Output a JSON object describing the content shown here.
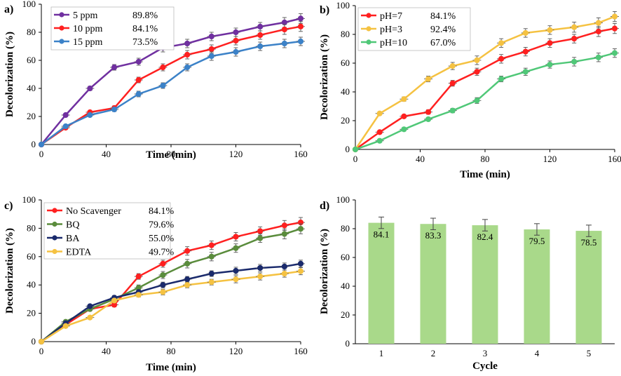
{
  "chart_data": [
    {
      "panel": "a)",
      "type": "line",
      "xlabel": "Time (min)",
      "ylabel": "Decolorization (%)",
      "xlim": [
        0,
        160
      ],
      "ylim": [
        0,
        100
      ],
      "xticks": [
        0,
        40,
        80,
        120,
        160
      ],
      "yticks": [
        0,
        20,
        40,
        60,
        80,
        100
      ],
      "x": [
        0,
        15,
        30,
        45,
        60,
        75,
        90,
        105,
        120,
        135,
        150,
        160
      ],
      "legend_position": "top-left",
      "series": [
        {
          "name": "5 ppm",
          "label": "89.8%",
          "color": "#7030a0",
          "values": [
            0,
            21,
            40,
            55,
            59,
            69,
            72,
            77,
            80,
            84,
            87,
            89.8
          ],
          "errors": [
            0,
            1,
            1.5,
            2,
            2.5,
            3,
            3,
            3,
            3,
            3,
            3.5,
            3.5
          ]
        },
        {
          "name": "10 ppm",
          "label": "84.1%",
          "color": "#ff2020",
          "values": [
            0,
            12,
            23,
            26,
            46,
            55,
            64,
            68,
            74,
            78,
            82,
            84.1
          ],
          "errors": [
            0,
            1,
            1,
            1.5,
            2,
            2.5,
            3,
            3,
            3,
            3,
            3.5,
            3.5
          ]
        },
        {
          "name": "15 ppm",
          "label": "73.5%",
          "color": "#3c82c8",
          "values": [
            0,
            13,
            21,
            25,
            36,
            42,
            55,
            63,
            66,
            70,
            72,
            73.5
          ],
          "errors": [
            0,
            1,
            1,
            1.5,
            2,
            2,
            2.5,
            3,
            3,
            3,
            3,
            3
          ]
        }
      ]
    },
    {
      "panel": "b)",
      "type": "line",
      "xlabel": "Time (min)",
      "ylabel": "Decolorization (%)",
      "xlim": [
        0,
        160
      ],
      "ylim": [
        0,
        100
      ],
      "xticks": [
        0,
        40,
        80,
        120,
        160
      ],
      "yticks": [
        0,
        20,
        40,
        60,
        80,
        100
      ],
      "x": [
        0,
        15,
        30,
        45,
        60,
        75,
        90,
        105,
        120,
        135,
        150,
        160
      ],
      "legend_position": "top-left",
      "series": [
        {
          "name": "pH=7",
          "label": "84.1%",
          "color": "#ff2020",
          "values": [
            0,
            12,
            23,
            26,
            46,
            54,
            63,
            68,
            74,
            77,
            82,
            84.1
          ],
          "errors": [
            0,
            1,
            1,
            1.5,
            2,
            2.5,
            3,
            3,
            3,
            3,
            3.5,
            3.5
          ]
        },
        {
          "name": "pH=3",
          "label": "92.4%",
          "color": "#f5c242",
          "values": [
            0,
            25,
            35,
            49,
            58,
            62,
            74,
            81,
            83,
            85,
            88,
            92.4
          ],
          "errors": [
            0,
            1,
            1.5,
            2,
            2.5,
            3,
            3,
            3,
            3,
            3.5,
            3.5,
            3.5
          ]
        },
        {
          "name": "pH=10",
          "label": "67.0%",
          "color": "#50c878",
          "values": [
            0,
            6,
            14,
            21,
            27,
            34,
            49,
            54,
            59,
            61,
            64,
            67.0
          ],
          "errors": [
            0,
            0.8,
            1,
            1,
            1.5,
            2,
            2,
            2.5,
            2.5,
            3,
            3,
            3
          ]
        }
      ]
    },
    {
      "panel": "c)",
      "type": "line",
      "xlabel": "Time (min)",
      "ylabel": "Decolorization (%)",
      "xlim": [
        0,
        160
      ],
      "ylim": [
        0,
        100
      ],
      "xticks": [
        0,
        40,
        80,
        120,
        160
      ],
      "yticks": [
        0,
        20,
        40,
        60,
        80,
        100
      ],
      "x": [
        0,
        15,
        30,
        45,
        60,
        75,
        90,
        105,
        120,
        135,
        150,
        160
      ],
      "legend_position": "top-left",
      "series": [
        {
          "name": "No Scavenger",
          "label": "84.1%",
          "color": "#ff2020",
          "values": [
            0,
            12,
            23,
            26,
            46,
            55,
            64,
            68,
            74,
            78,
            82,
            84.1
          ],
          "errors": [
            0,
            1,
            1,
            1.5,
            2,
            2.5,
            3,
            3,
            3,
            3,
            3.5,
            3.5
          ]
        },
        {
          "name": "BQ",
          "label": "79.6%",
          "color": "#5a8c3c",
          "values": [
            0,
            14,
            23,
            30,
            38,
            47,
            55,
            60,
            66,
            73,
            76,
            79.6
          ],
          "errors": [
            0,
            1,
            1,
            1.5,
            2,
            2.5,
            3,
            3,
            3,
            3,
            3.5,
            3.5
          ]
        },
        {
          "name": "BA",
          "label": "55.0%",
          "color": "#1a2a6c",
          "values": [
            0,
            13,
            25,
            31,
            35,
            40,
            44,
            48,
            50,
            52,
            53,
            55.0
          ],
          "errors": [
            0,
            1,
            1,
            1.5,
            1.5,
            2,
            2,
            2,
            2.5,
            2.5,
            2.5,
            2.5
          ]
        },
        {
          "name": "EDTA",
          "label": "49.7%",
          "color": "#f5c242",
          "values": [
            0,
            11,
            17,
            29,
            33,
            35,
            40,
            42,
            44,
            46,
            48,
            49.7
          ],
          "errors": [
            0,
            1,
            1,
            1.5,
            1.5,
            2,
            2,
            2,
            2.5,
            2.5,
            2.5,
            2.5
          ]
        }
      ]
    },
    {
      "panel": "d)",
      "type": "bar",
      "xlabel": "Cycle",
      "ylabel": "Decolorization (%)",
      "ylim": [
        0,
        100
      ],
      "yticks": [
        0,
        20,
        40,
        60,
        80,
        100
      ],
      "categories": [
        "1",
        "2",
        "3",
        "4",
        "5"
      ],
      "values": [
        84.1,
        83.3,
        82.4,
        79.5,
        78.5
      ],
      "labels": [
        "84.1",
        "83.3",
        "82.4",
        "79.5",
        "78.5"
      ],
      "errors": [
        4,
        4,
        4,
        4,
        4
      ],
      "color": "#a9d98a"
    }
  ]
}
